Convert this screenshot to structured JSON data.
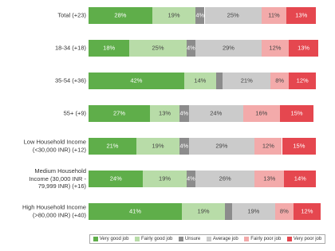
{
  "chart_data": {
    "type": "stacked-bar-horizontal",
    "categories": [
      "Total (+23)",
      "18-34 (+18)",
      "35-54 (+36)",
      "55+ (+9)",
      "Low Household Income\n(<30,000 INR) (+12)",
      "Medium Household\nIncome (30,000 INR -\n79,999 INR) (+16)",
      "High Household Income\n(>80,000 INR) (+40)"
    ],
    "series": [
      {
        "name": "Very good job",
        "color": "#5fae4a",
        "values": [
          28,
          18,
          42,
          27,
          21,
          24,
          41
        ],
        "value_labels": [
          "28%",
          "18%",
          "42%",
          "27%",
          "21%",
          "24%",
          "41%"
        ]
      },
      {
        "name": "Fairly good job",
        "color": "#b8dca8",
        "values": [
          19,
          25,
          14,
          13,
          19,
          19,
          19
        ],
        "value_labels": [
          "19%",
          "25%",
          "14%",
          "13%",
          "19%",
          "19%",
          "19%"
        ]
      },
      {
        "name": "Unsure",
        "color": "#8c8c8c",
        "values": [
          4,
          4,
          3,
          4,
          4,
          4,
          3
        ],
        "value_labels": [
          "4%",
          "4%",
          null,
          "4%",
          "4%",
          "4%",
          null
        ]
      },
      {
        "name": "Average job",
        "color": "#cbcbcb",
        "values": [
          25,
          29,
          21,
          24,
          29,
          26,
          19
        ],
        "value_labels": [
          "25%",
          "29%",
          "21%",
          "24%",
          "29%",
          "26%",
          "19%"
        ]
      },
      {
        "name": "Fairly poor job",
        "color": "#f3aaaa",
        "values": [
          11,
          12,
          8,
          16,
          12,
          13,
          8
        ],
        "value_labels": [
          "11%",
          "12%",
          "8%",
          "16%",
          "12%",
          "13%",
          "8%"
        ]
      },
      {
        "name": "Very poor job",
        "color": "#e5474f",
        "values": [
          13,
          13,
          12,
          15,
          15,
          14,
          12
        ],
        "value_labels": [
          "13%",
          "13%",
          "12%",
          "15%",
          "15%",
          "14%",
          "12%"
        ]
      }
    ]
  }
}
